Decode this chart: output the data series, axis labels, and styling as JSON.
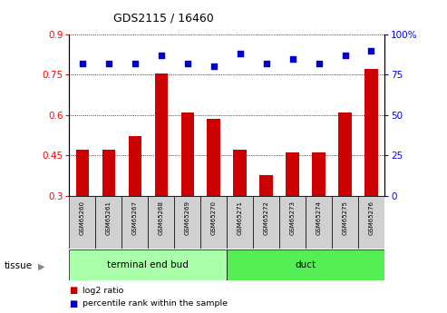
{
  "title": "GDS2115 / 16460",
  "samples": [
    "GSM65260",
    "GSM65261",
    "GSM65267",
    "GSM65268",
    "GSM65269",
    "GSM65270",
    "GSM65271",
    "GSM65272",
    "GSM65273",
    "GSM65274",
    "GSM65275",
    "GSM65276"
  ],
  "log2_ratio": [
    0.47,
    0.47,
    0.52,
    0.755,
    0.61,
    0.585,
    0.47,
    0.375,
    0.46,
    0.46,
    0.61,
    0.77
  ],
  "percentile_rank": [
    82,
    82,
    82,
    87,
    82,
    80,
    88,
    82,
    85,
    82,
    87,
    90
  ],
  "bar_color": "#cc0000",
  "dot_color": "#0000cc",
  "ylim_left": [
    0.3,
    0.9
  ],
  "ylim_right": [
    0,
    100
  ],
  "yticks_left": [
    0.3,
    0.45,
    0.6,
    0.75,
    0.9
  ],
  "yticks_right": [
    0,
    25,
    50,
    75,
    100
  ],
  "ytick_labels_left": [
    "0.3",
    "0.45",
    "0.6",
    "0.75",
    "0.9"
  ],
  "ytick_labels_right": [
    "0",
    "25",
    "50",
    "75",
    "100%"
  ],
  "groups": [
    {
      "label": "terminal end bud",
      "start": 0,
      "end": 6,
      "color": "#aaffaa"
    },
    {
      "label": "duct",
      "start": 6,
      "end": 12,
      "color": "#55ee55"
    }
  ],
  "tissue_label": "tissue",
  "legend_bar_label": "log2 ratio",
  "legend_dot_label": "percentile rank within the sample",
  "sample_box_color": "#d0d0d0"
}
